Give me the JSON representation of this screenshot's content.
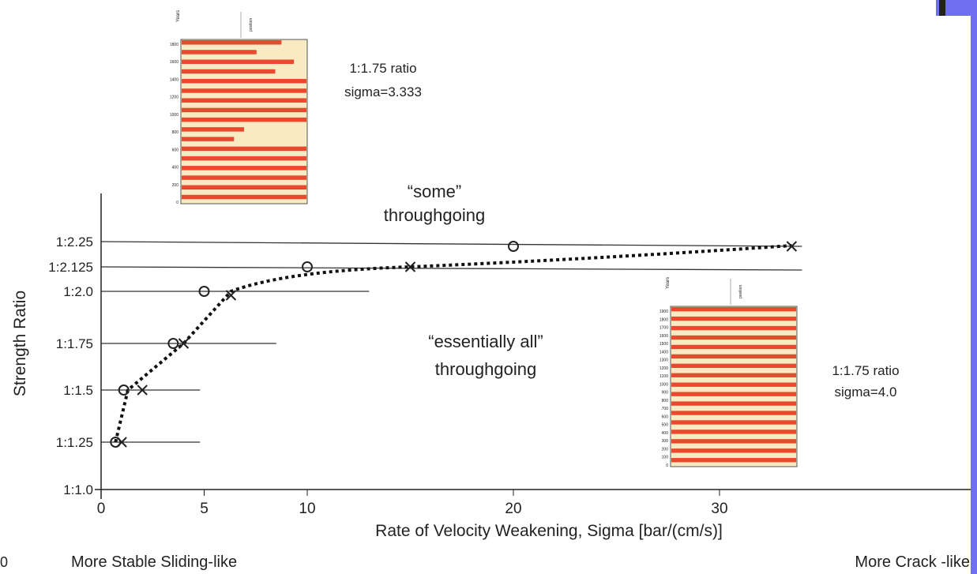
{
  "chart_data": {
    "type": "scatter",
    "xlabel": "Rate of Velocity Weakening, Sigma [bar/(cm/s)]",
    "ylabel": "Strength Ratio",
    "xlim": [
      0,
      34
    ],
    "y_categories": [
      "1:1.0",
      "1:1.25",
      "1:1.5",
      "1:1.75",
      "1:2.0",
      "1:2.125",
      "1:2.25"
    ],
    "x_ticks": [
      "0",
      "5",
      "10",
      "20",
      "30"
    ],
    "x_tick_values": [
      0,
      5,
      10,
      20,
      30
    ],
    "bottom_left_label": "More Stable Sliding-like",
    "bottom_right_label": "More Crack -like",
    "corner_label": "0",
    "regions": [
      {
        "name": "upper",
        "text_line1": "“some”",
        "text_line2": "throughgoing"
      },
      {
        "name": "lower",
        "text_line1": "“essentially all”",
        "text_line2": "throughgoing"
      }
    ],
    "series": [
      {
        "marker": "o",
        "points": [
          {
            "x": 0.7,
            "y": "1:1.25"
          },
          {
            "x": 1.1,
            "y": "1:1.5"
          },
          {
            "x": 3.5,
            "y": "1:1.75"
          },
          {
            "x": 5,
            "y": "1:2.0"
          },
          {
            "x": 10,
            "y": "1:2.125"
          },
          {
            "x": 20,
            "y": "1:2.25"
          }
        ]
      },
      {
        "marker": "x",
        "points": [
          {
            "x": 1,
            "y": "1:1.25"
          },
          {
            "x": 2,
            "y": "1:1.5"
          },
          {
            "x": 4,
            "y": "1:1.75"
          },
          {
            "x": 6.3,
            "y": "1:2.0"
          },
          {
            "x": 15,
            "y": "1:2.125"
          },
          {
            "x": 33.5,
            "y": "1:2.25"
          }
        ]
      }
    ],
    "reference_lines": [
      {
        "y": "1:1.25",
        "x_start": 0,
        "x_end": 4.8
      },
      {
        "y": "1:1.5",
        "x_start": 0,
        "x_end": 4.8
      },
      {
        "y": "1:1.75",
        "x_start": 0,
        "x_end": 8.5
      },
      {
        "y": "1:2.0",
        "x_start": 0,
        "x_end": 13
      },
      {
        "y": "1:2.125",
        "x_start": 0,
        "x_end": 34
      },
      {
        "y": "1:2.25",
        "x_start": 0,
        "x_end": 34
      }
    ],
    "transition_curve": [
      {
        "x": 0.7,
        "y": "1:1.25"
      },
      {
        "x": 1.3,
        "y": "1:1.5"
      },
      {
        "x": 4,
        "y": "1:1.75"
      },
      {
        "x": 6.3,
        "y": "1:2.0"
      },
      {
        "x": 15,
        "y": "1:2.125"
      },
      {
        "x": 33.5,
        "y": "1:2.25"
      }
    ],
    "insets": [
      {
        "name": "upper",
        "y_title": "Years",
        "x_title": "position",
        "y_ticks": [
          "1800",
          "1600",
          "1400",
          "1200",
          "1000",
          "800",
          "600",
          "400",
          "200",
          "0"
        ],
        "caption_line1": "1:1.75 ratio",
        "caption_line2": "sigma=3.333",
        "all_throughgoing": false
      },
      {
        "name": "lower",
        "y_title": "Years",
        "x_title": "position",
        "y_ticks": [
          "1900",
          "1800",
          "1700",
          "1600",
          "1500",
          "1400",
          "1300",
          "1200",
          "1100",
          "1000",
          "900",
          "800",
          "700",
          "600",
          "500",
          "400",
          "300",
          "200",
          "100",
          "0"
        ],
        "caption_line1": "1:1.75 ratio",
        "caption_line2": "sigma=4.0",
        "all_throughgoing": true
      }
    ],
    "colors": {
      "event_red": "#e8492f",
      "inset_background": "#f8ebc4",
      "axis": "#222222",
      "edge_bar": "#6f6ff2"
    }
  }
}
